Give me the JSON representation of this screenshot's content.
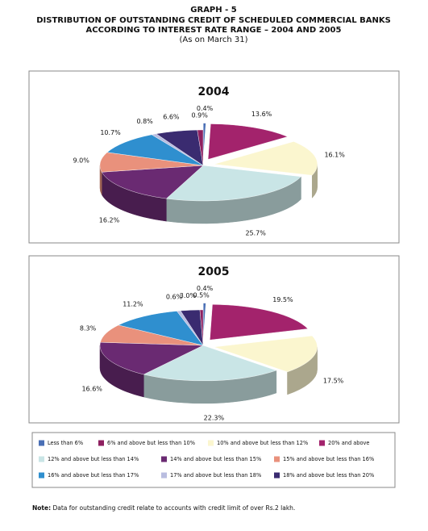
{
  "header": {
    "graph": "GRAPH - 5",
    "title_lines": [
      "DISTRIBUTION OF OUTSTANDING CREDIT OF SCHEDULED COMMERCIAL BANKS",
      "ACCORDING TO INTEREST RATE RANGE – 2004 AND 2005"
    ],
    "subtitle": "(As on March 31)"
  },
  "chart_data": [
    {
      "type": "pie",
      "title": "2004",
      "categories": [
        "Less than 6%",
        "20% and above",
        "10% and above but less than 12%",
        "12% and above but less than 14%",
        "14% and above but less than 15%",
        "15% and above but less than 16%",
        "16% and above but less than 17%",
        "17% and above but less than 18%",
        "18% and above but less than 20%",
        "6% and above but less than 10%"
      ],
      "values": [
        0.4,
        13.6,
        16.1,
        25.7,
        16.2,
        9.0,
        10.7,
        0.8,
        6.6,
        0.9
      ],
      "value_labels": [
        "0.4%",
        "13.6%",
        "16.1%",
        "25.7%",
        "16.2%",
        "9.0%",
        "10.7%",
        "0.8%",
        "6.6%",
        "0.9%"
      ],
      "colors": [
        "#4a6fb5",
        "#a3236c",
        "#fbf6cf",
        "#c9e5e6",
        "#6a2a72",
        "#e9917c",
        "#2f8fcf",
        "#b9bde0",
        "#3a2b70",
        "#8e2060"
      ],
      "explode": [
        true,
        true,
        true,
        false,
        false,
        false,
        false,
        false,
        false,
        false
      ]
    },
    {
      "type": "pie",
      "title": "2005",
      "categories": [
        "Less than 6%",
        "20% and above",
        "10% and above but less than 12%",
        "12% and above but less than 14%",
        "14% and above but less than 15%",
        "15% and above but less than 16%",
        "16% and above but less than 17%",
        "17% and above but less than 18%",
        "18% and above but less than 20%",
        "6% and above but less than 10%"
      ],
      "values": [
        0.4,
        19.5,
        17.5,
        22.3,
        16.6,
        8.3,
        11.2,
        0.6,
        3.0,
        0.5
      ],
      "value_labels": [
        "0.4%",
        "19.5%",
        "17.5%",
        "22.3%",
        "16.6%",
        "8.3%",
        "11.2%",
        "0.6%",
        "3.0%",
        "0.5%"
      ],
      "colors": [
        "#4a6fb5",
        "#a3236c",
        "#fbf6cf",
        "#c9e5e6",
        "#6a2a72",
        "#e9917c",
        "#2f8fcf",
        "#b9bde0",
        "#3a2b70",
        "#8e2060"
      ],
      "explode": [
        true,
        true,
        true,
        false,
        false,
        false,
        false,
        false,
        false,
        false
      ]
    }
  ],
  "note": {
    "label": "Note:",
    "text": "Data for outstanding credit relate to accounts with credit limit of over Rs.2 lakh."
  }
}
